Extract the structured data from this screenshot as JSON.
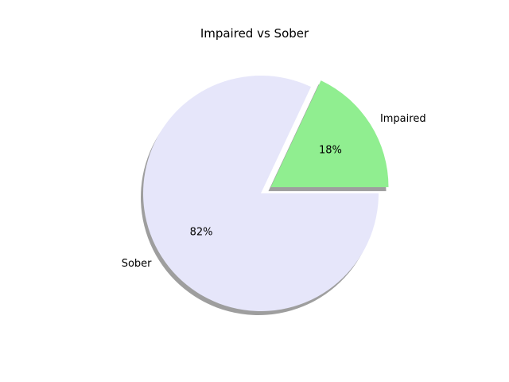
{
  "chart_data": {
    "type": "pie",
    "title": "Impaired vs Sober",
    "slices": [
      {
        "label": "Impaired",
        "value": 18,
        "pct_label": "18%",
        "color": "#90EE90",
        "exploded": true
      },
      {
        "label": "Sober",
        "value": 82,
        "pct_label": "82%",
        "color": "#E6E6FA",
        "exploded": false
      }
    ],
    "start_angle_deg": 0,
    "shadow": true
  }
}
